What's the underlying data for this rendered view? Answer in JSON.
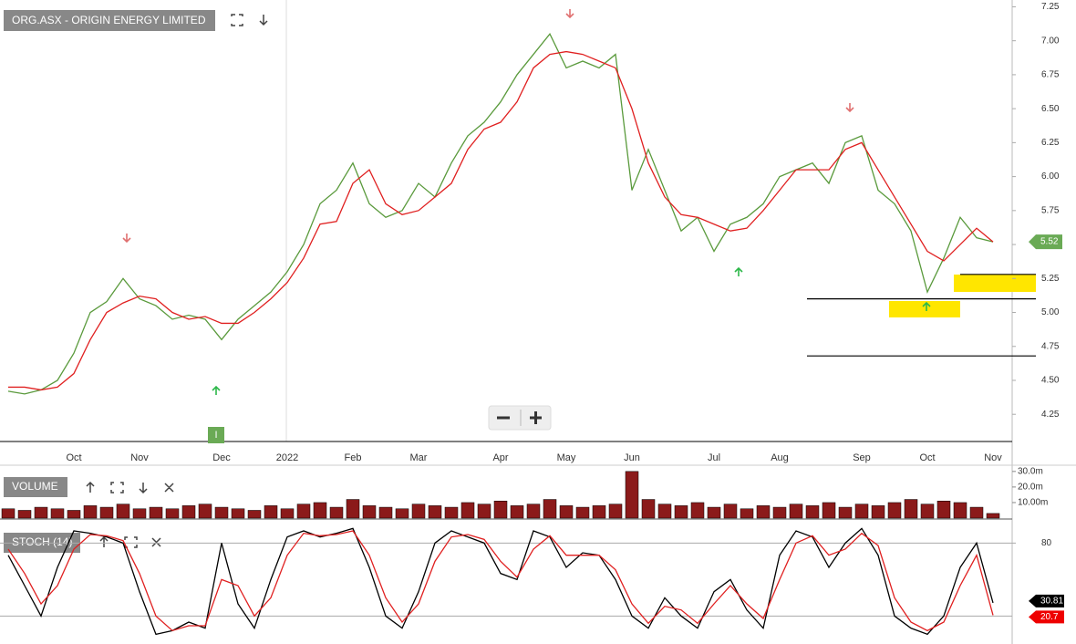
{
  "chart_data": [
    {
      "type": "line",
      "title": "ORG.ASX - ORIGIN ENERGY LIMITED",
      "categories": [
        null,
        null,
        null,
        null,
        "Oct",
        null,
        null,
        null,
        "Nov",
        null,
        null,
        null,
        null,
        "Dec",
        null,
        null,
        null,
        "2022",
        null,
        null,
        null,
        "Feb",
        null,
        null,
        null,
        "Mar",
        null,
        null,
        null,
        null,
        "Apr",
        null,
        null,
        null,
        "May",
        null,
        null,
        null,
        "Jun",
        null,
        null,
        null,
        null,
        "Jul",
        null,
        null,
        null,
        "Aug",
        null,
        null,
        null,
        null,
        "Sep",
        null,
        null,
        null,
        "Oct",
        null,
        null,
        null,
        "Nov"
      ],
      "series": [
        {
          "color": "#5a9a3c",
          "values": [
            4.42,
            4.4,
            4.43,
            4.5,
            4.7,
            5.0,
            5.08,
            5.25,
            5.1,
            5.05,
            4.95,
            4.98,
            4.95,
            4.8,
            4.95,
            5.05,
            5.15,
            5.3,
            5.5,
            5.8,
            5.9,
            6.1,
            5.8,
            5.7,
            5.75,
            5.95,
            5.85,
            6.1,
            6.3,
            6.4,
            6.55,
            6.75,
            6.9,
            7.05,
            6.8,
            6.85,
            6.8,
            6.9,
            5.9,
            6.2,
            5.9,
            5.6,
            5.7,
            5.45,
            5.65,
            5.7,
            5.8,
            6.0,
            6.05,
            6.1,
            5.95,
            6.25,
            6.3,
            5.9,
            5.8,
            5.6,
            5.15,
            5.4,
            5.7,
            5.55,
            5.52
          ]
        },
        {
          "color": "#e02020",
          "values": [
            4.45,
            4.45,
            4.43,
            4.45,
            4.55,
            4.8,
            5.0,
            5.07,
            5.12,
            5.1,
            5.0,
            4.95,
            4.97,
            4.92,
            4.92,
            5.0,
            5.1,
            5.22,
            5.4,
            5.65,
            5.67,
            5.95,
            6.05,
            5.8,
            5.72,
            5.75,
            5.85,
            5.95,
            6.2,
            6.35,
            6.4,
            6.55,
            6.8,
            6.9,
            6.92,
            6.9,
            6.85,
            6.8,
            6.5,
            6.1,
            5.85,
            5.72,
            5.7,
            5.65,
            5.6,
            5.62,
            5.75,
            5.9,
            6.05,
            6.05,
            6.05,
            6.2,
            6.25,
            6.05,
            5.85,
            5.65,
            5.45,
            5.38,
            5.5,
            5.62,
            5.52
          ]
        }
      ],
      "levels": [
        5.28,
        5.1,
        4.68
      ],
      "marker": "I",
      "ylim": [
        4.05,
        7.3
      ],
      "yticks": [
        4.25,
        {
          "value": 4.5,
          "label": "4.50"
        },
        4.75,
        {
          "value": 5,
          "label": "5.00"
        },
        5.25,
        {
          "value": 5.5,
          "label": "5.50"
        },
        5.75,
        {
          "value": 6,
          "label": "6.00"
        },
        6.25,
        {
          "value": 6.5,
          "label": "6.50"
        },
        6.75,
        {
          "value": 7,
          "label": "7.00"
        },
        7.25
      ]
    },
    {
      "type": "bar",
      "title": "VOLUME",
      "color": "#8b1a1a",
      "values": [
        6,
        5,
        7,
        6,
        5,
        8,
        7,
        9,
        6,
        7,
        6,
        8,
        9,
        7,
        6,
        5,
        8,
        6,
        9,
        10,
        7,
        12,
        8,
        7,
        6,
        9,
        8,
        7,
        10,
        9,
        11,
        8,
        9,
        12,
        8,
        7,
        8,
        9,
        30,
        12,
        9,
        8,
        10,
        7,
        9,
        6,
        8,
        7,
        9,
        8,
        10,
        7,
        9,
        8,
        10,
        12,
        9,
        11,
        10,
        7,
        3
      ],
      "ylim": [
        0,
        34
      ],
      "yticks": [
        {
          "value": 10,
          "label": "10.00m"
        },
        {
          "value": 20,
          "label": "20.0m"
        },
        {
          "value": 30,
          "label": "30.0m"
        }
      ]
    },
    {
      "type": "line",
      "title": "STOCH (14)",
      "series": [
        {
          "color": "#000000",
          "values": [
            70,
            45,
            20,
            60,
            90,
            88,
            85,
            80,
            40,
            5,
            8,
            15,
            10,
            80,
            30,
            10,
            50,
            85,
            90,
            85,
            88,
            92,
            60,
            20,
            10,
            40,
            80,
            90,
            85,
            80,
            55,
            50,
            90,
            85,
            60,
            72,
            70,
            50,
            20,
            10,
            35,
            20,
            10,
            40,
            50,
            25,
            10,
            70,
            90,
            85,
            60,
            80,
            92,
            70,
            20,
            10,
            5,
            20,
            60,
            80,
            30.81
          ]
        },
        {
          "color": "#e02020",
          "values": [
            75,
            55,
            30,
            45,
            75,
            87,
            86,
            82,
            55,
            20,
            8,
            12,
            12,
            50,
            45,
            20,
            35,
            70,
            88,
            86,
            87,
            90,
            70,
            35,
            15,
            30,
            65,
            85,
            87,
            83,
            65,
            52,
            75,
            86,
            70,
            70,
            70,
            58,
            30,
            14,
            28,
            25,
            14,
            30,
            45,
            30,
            18,
            50,
            80,
            86,
            70,
            75,
            88,
            78,
            35,
            15,
            8,
            15,
            45,
            70,
            20.7
          ]
        }
      ],
      "levels": [
        20
      ],
      "ylim": [
        0,
        99
      ],
      "yticks": [
        80
      ]
    }
  ]
}
